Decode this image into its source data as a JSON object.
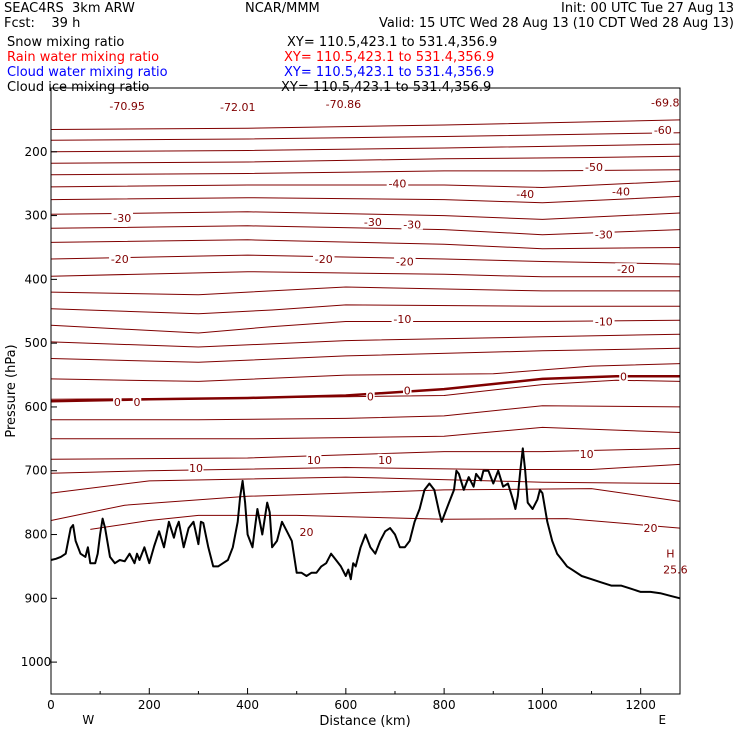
{
  "header": {
    "model": "SEAC4RS  3km ARW",
    "center": "NCAR/MMM",
    "init": "Init: 00 UTC Tue 27 Aug 13",
    "fcst": "Fcst:    39 h",
    "valid": "Valid: 15 UTC Wed 28 Aug 13 (10 CDT Wed 28 Aug 13)",
    "fields": [
      {
        "name": "Snow mixing ratio",
        "xy": "XY= 110.5,423.1 to 531.4,356.9",
        "color": "#000000"
      },
      {
        "name": "Rain water mixing ratio",
        "xy": "XY= 110.5,423.1 to 531.4,356.9",
        "color": "#ff0000"
      },
      {
        "name": "Cloud water mixing ratio",
        "xy": "XY= 110.5,423.1 to 531.4,356.9",
        "color": "#0000ff"
      },
      {
        "name": "Cloud ice mixing ratio",
        "xy": "XY= 110.5,423.1 to 531.4,356.9",
        "color": "#000000"
      }
    ]
  },
  "chart_data": {
    "type": "line",
    "xlabel": "Distance (km)",
    "ylabel": "Pressure (hPa)",
    "xlim": [
      0,
      1280
    ],
    "ylim": [
      100,
      1050
    ],
    "y_axis_inverted": true,
    "x_ticks": [
      0,
      200,
      400,
      600,
      800,
      1000,
      1200
    ],
    "x_tick_labels": [
      "0",
      "200",
      "400",
      "600",
      "800",
      "1000",
      "1200"
    ],
    "y_ticks": [
      200,
      300,
      400,
      500,
      600,
      700,
      800,
      900,
      1000
    ],
    "y_tick_labels": [
      "200",
      "300",
      "400",
      "500",
      "600",
      "700",
      "800",
      "900",
      "1000"
    ],
    "end_labels": {
      "left": "W",
      "right": "E"
    },
    "contour_color": "#800000",
    "terrain_color": "#000000",
    "contours": [
      [
        [
          0,
          165
        ],
        [
          400,
          163
        ],
        [
          800,
          158
        ],
        [
          1280,
          150
        ]
      ],
      [
        [
          0,
          182
        ],
        [
          400,
          180
        ],
        [
          800,
          176
        ],
        [
          1280,
          170
        ]
      ],
      [
        [
          0,
          200
        ],
        [
          400,
          198
        ],
        [
          800,
          194
        ],
        [
          1280,
          188
        ]
      ],
      [
        [
          0,
          218
        ],
        [
          400,
          216
        ],
        [
          800,
          211
        ],
        [
          1100,
          209
        ],
        [
          1280,
          207
        ]
      ],
      [
        [
          0,
          236
        ],
        [
          400,
          234
        ],
        [
          800,
          230
        ],
        [
          1000,
          230
        ],
        [
          1280,
          228
        ]
      ],
      [
        [
          0,
          255
        ],
        [
          400,
          252
        ],
        [
          800,
          252
        ],
        [
          1000,
          256
        ],
        [
          1280,
          246
        ]
      ],
      [
        [
          0,
          275
        ],
        [
          400,
          272
        ],
        [
          800,
          275
        ],
        [
          1000,
          280
        ],
        [
          1280,
          270
        ]
      ],
      [
        [
          0,
          298
        ],
        [
          400,
          294
        ],
        [
          800,
          300
        ],
        [
          1000,
          306
        ],
        [
          1280,
          296
        ]
      ],
      [
        [
          0,
          320
        ],
        [
          400,
          316
        ],
        [
          800,
          322
        ],
        [
          1000,
          330
        ],
        [
          1280,
          322
        ]
      ],
      [
        [
          0,
          342
        ],
        [
          400,
          338
        ],
        [
          800,
          345
        ],
        [
          1000,
          352
        ],
        [
          1280,
          350
        ]
      ],
      [
        [
          0,
          368
        ],
        [
          400,
          362
        ],
        [
          800,
          368
        ],
        [
          1000,
          372
        ],
        [
          1280,
          376
        ]
      ],
      [
        [
          0,
          395
        ],
        [
          400,
          388
        ],
        [
          800,
          392
        ],
        [
          1000,
          396
        ],
        [
          1280,
          396
        ]
      ],
      [
        [
          0,
          420
        ],
        [
          300,
          424
        ],
        [
          600,
          412
        ],
        [
          1000,
          418
        ],
        [
          1280,
          418
        ]
      ],
      [
        [
          0,
          446
        ],
        [
          300,
          454
        ],
        [
          450,
          448
        ],
        [
          600,
          440
        ],
        [
          1000,
          442
        ],
        [
          1280,
          442
        ]
      ],
      [
        [
          0,
          472
        ],
        [
          300,
          484
        ],
        [
          450,
          474
        ],
        [
          600,
          466
        ],
        [
          1000,
          466
        ],
        [
          1280,
          464
        ]
      ],
      [
        [
          0,
          498
        ],
        [
          300,
          506
        ],
        [
          600,
          496
        ],
        [
          1000,
          490
        ],
        [
          1280,
          486
        ]
      ],
      [
        [
          0,
          524
        ],
        [
          300,
          530
        ],
        [
          600,
          520
        ],
        [
          1000,
          512
        ],
        [
          1280,
          508
        ]
      ],
      [
        [
          0,
          556
        ],
        [
          300,
          560
        ],
        [
          600,
          550
        ],
        [
          900,
          548
        ],
        [
          1100,
          536
        ],
        [
          1280,
          532
        ]
      ],
      [
        [
          0,
          588
        ],
        [
          400,
          586
        ],
        [
          600,
          584
        ],
        [
          800,
          582
        ],
        [
          1000,
          565
        ],
        [
          1150,
          558
        ],
        [
          1280,
          560
        ]
      ],
      [
        [
          0,
          620
        ],
        [
          300,
          620
        ],
        [
          600,
          618
        ],
        [
          800,
          614
        ],
        [
          1000,
          598
        ],
        [
          1280,
          600
        ]
      ],
      [
        [
          0,
          650
        ],
        [
          400,
          650
        ],
        [
          800,
          646
        ],
        [
          1000,
          632
        ],
        [
          1280,
          640
        ]
      ],
      [
        [
          0,
          682
        ],
        [
          400,
          680
        ],
        [
          800,
          670
        ],
        [
          1000,
          670
        ],
        [
          1280,
          665
        ]
      ],
      [
        [
          0,
          704
        ],
        [
          200,
          700
        ],
        [
          600,
          695
        ],
        [
          900,
          698
        ],
        [
          1100,
          698
        ],
        [
          1280,
          690
        ]
      ],
      [
        [
          0,
          735
        ],
        [
          200,
          716
        ],
        [
          600,
          710
        ],
        [
          1000,
          718
        ],
        [
          1280,
          720
        ]
      ],
      [
        [
          0,
          778
        ],
        [
          150,
          754
        ],
        [
          400,
          740
        ],
        [
          800,
          730
        ],
        [
          1100,
          728
        ],
        [
          1280,
          748
        ]
      ],
      [
        [
          80,
          792
        ],
        [
          200,
          778
        ],
        [
          300,
          770
        ],
        [
          500,
          770
        ],
        [
          800,
          776
        ],
        [
          1050,
          775
        ],
        [
          1280,
          790
        ]
      ]
    ],
    "thick_contours": [
      [
        [
          0,
          591
        ],
        [
          200,
          588
        ],
        [
          400,
          586
        ],
        [
          600,
          582
        ],
        [
          800,
          572
        ],
        [
          1000,
          556
        ],
        [
          1150,
          552
        ],
        [
          1280,
          552
        ]
      ]
    ],
    "contour_labels": [
      {
        "text": "-70.95",
        "x": 155,
        "y": 128
      },
      {
        "text": "-72.01",
        "x": 380,
        "y": 130
      },
      {
        "text": "-70.86",
        "x": 595,
        "y": 125
      },
      {
        "text": "-69.8",
        "x": 1250,
        "y": 123
      },
      {
        "text": "-60",
        "x": 1245,
        "y": 166
      },
      {
        "text": "-50",
        "x": 1105,
        "y": 224
      },
      {
        "text": "-40",
        "x": 705,
        "y": 250
      },
      {
        "text": "-40",
        "x": 965,
        "y": 266
      },
      {
        "text": "-40",
        "x": 1160,
        "y": 262
      },
      {
        "text": "-30",
        "x": 145,
        "y": 304
      },
      {
        "text": "-30",
        "x": 655,
        "y": 310
      },
      {
        "text": "-30",
        "x": 735,
        "y": 314
      },
      {
        "text": "-30",
        "x": 1125,
        "y": 330
      },
      {
        "text": "-20",
        "x": 140,
        "y": 368
      },
      {
        "text": "-20",
        "x": 555,
        "y": 368
      },
      {
        "text": "-20",
        "x": 720,
        "y": 372
      },
      {
        "text": "-20",
        "x": 1170,
        "y": 384
      },
      {
        "text": "-10",
        "x": 715,
        "y": 462
      },
      {
        "text": "-10",
        "x": 1125,
        "y": 466
      },
      {
        "text": "0",
        "x": 135,
        "y": 592
      },
      {
        "text": "0",
        "x": 175,
        "y": 592
      },
      {
        "text": "0",
        "x": 650,
        "y": 584
      },
      {
        "text": "0",
        "x": 725,
        "y": 574
      },
      {
        "text": "0",
        "x": 1165,
        "y": 552
      },
      {
        "text": "10",
        "x": 295,
        "y": 696
      },
      {
        "text": "10",
        "x": 535,
        "y": 683
      },
      {
        "text": "10",
        "x": 680,
        "y": 683
      },
      {
        "text": "10",
        "x": 1090,
        "y": 674
      },
      {
        "text": "20",
        "x": 520,
        "y": 796
      },
      {
        "text": "20",
        "x": 1220,
        "y": 790
      }
    ],
    "max_label": {
      "marker": "H",
      "value": "25.6",
      "x": 1240,
      "y": 858
    },
    "terrain": [
      [
        0,
        840
      ],
      [
        10,
        838
      ],
      [
        20,
        835
      ],
      [
        30,
        830
      ],
      [
        40,
        790
      ],
      [
        45,
        785
      ],
      [
        50,
        810
      ],
      [
        60,
        830
      ],
      [
        70,
        835
      ],
      [
        75,
        820
      ],
      [
        80,
        845
      ],
      [
        90,
        845
      ],
      [
        95,
        830
      ],
      [
        100,
        800
      ],
      [
        105,
        775
      ],
      [
        110,
        790
      ],
      [
        120,
        835
      ],
      [
        130,
        845
      ],
      [
        140,
        840
      ],
      [
        150,
        842
      ],
      [
        160,
        830
      ],
      [
        170,
        845
      ],
      [
        175,
        830
      ],
      [
        180,
        840
      ],
      [
        190,
        820
      ],
      [
        200,
        845
      ],
      [
        210,
        818
      ],
      [
        220,
        795
      ],
      [
        230,
        820
      ],
      [
        240,
        780
      ],
      [
        250,
        805
      ],
      [
        255,
        790
      ],
      [
        260,
        780
      ],
      [
        270,
        820
      ],
      [
        280,
        790
      ],
      [
        290,
        780
      ],
      [
        300,
        815
      ],
      [
        305,
        780
      ],
      [
        310,
        782
      ],
      [
        320,
        820
      ],
      [
        330,
        850
      ],
      [
        340,
        850
      ],
      [
        350,
        845
      ],
      [
        360,
        840
      ],
      [
        370,
        820
      ],
      [
        380,
        780
      ],
      [
        385,
        740
      ],
      [
        390,
        716
      ],
      [
        395,
        750
      ],
      [
        400,
        800
      ],
      [
        410,
        820
      ],
      [
        415,
        790
      ],
      [
        420,
        760
      ],
      [
        430,
        800
      ],
      [
        440,
        750
      ],
      [
        445,
        765
      ],
      [
        450,
        820
      ],
      [
        460,
        810
      ],
      [
        465,
        795
      ],
      [
        470,
        780
      ],
      [
        480,
        795
      ],
      [
        490,
        810
      ],
      [
        500,
        860
      ],
      [
        510,
        860
      ],
      [
        520,
        865
      ],
      [
        530,
        860
      ],
      [
        540,
        860
      ],
      [
        550,
        850
      ],
      [
        560,
        845
      ],
      [
        570,
        830
      ],
      [
        580,
        840
      ],
      [
        590,
        850
      ],
      [
        600,
        865
      ],
      [
        605,
        855
      ],
      [
        610,
        870
      ],
      [
        615,
        845
      ],
      [
        620,
        850
      ],
      [
        630,
        820
      ],
      [
        640,
        800
      ],
      [
        650,
        820
      ],
      [
        660,
        830
      ],
      [
        670,
        810
      ],
      [
        680,
        795
      ],
      [
        690,
        790
      ],
      [
        700,
        800
      ],
      [
        710,
        820
      ],
      [
        720,
        820
      ],
      [
        730,
        810
      ],
      [
        740,
        780
      ],
      [
        750,
        760
      ],
      [
        760,
        730
      ],
      [
        770,
        720
      ],
      [
        780,
        730
      ],
      [
        790,
        765
      ],
      [
        795,
        780
      ],
      [
        800,
        770
      ],
      [
        810,
        750
      ],
      [
        820,
        730
      ],
      [
        825,
        700
      ],
      [
        830,
        705
      ],
      [
        840,
        730
      ],
      [
        845,
        720
      ],
      [
        850,
        710
      ],
      [
        860,
        725
      ],
      [
        865,
        705
      ],
      [
        875,
        715
      ],
      [
        880,
        700
      ],
      [
        890,
        700
      ],
      [
        900,
        720
      ],
      [
        910,
        700
      ],
      [
        920,
        725
      ],
      [
        930,
        720
      ],
      [
        940,
        745
      ],
      [
        945,
        760
      ],
      [
        950,
        740
      ],
      [
        955,
        700
      ],
      [
        960,
        665
      ],
      [
        965,
        700
      ],
      [
        970,
        750
      ],
      [
        980,
        760
      ],
      [
        990,
        745
      ],
      [
        995,
        730
      ],
      [
        1000,
        735
      ],
      [
        1010,
        780
      ],
      [
        1020,
        810
      ],
      [
        1030,
        830
      ],
      [
        1040,
        840
      ],
      [
        1050,
        850
      ],
      [
        1060,
        855
      ],
      [
        1080,
        865
      ],
      [
        1100,
        870
      ],
      [
        1120,
        875
      ],
      [
        1140,
        880
      ],
      [
        1160,
        880
      ],
      [
        1180,
        885
      ],
      [
        1200,
        890
      ],
      [
        1220,
        890
      ],
      [
        1240,
        892
      ],
      [
        1260,
        896
      ],
      [
        1280,
        900
      ]
    ]
  }
}
